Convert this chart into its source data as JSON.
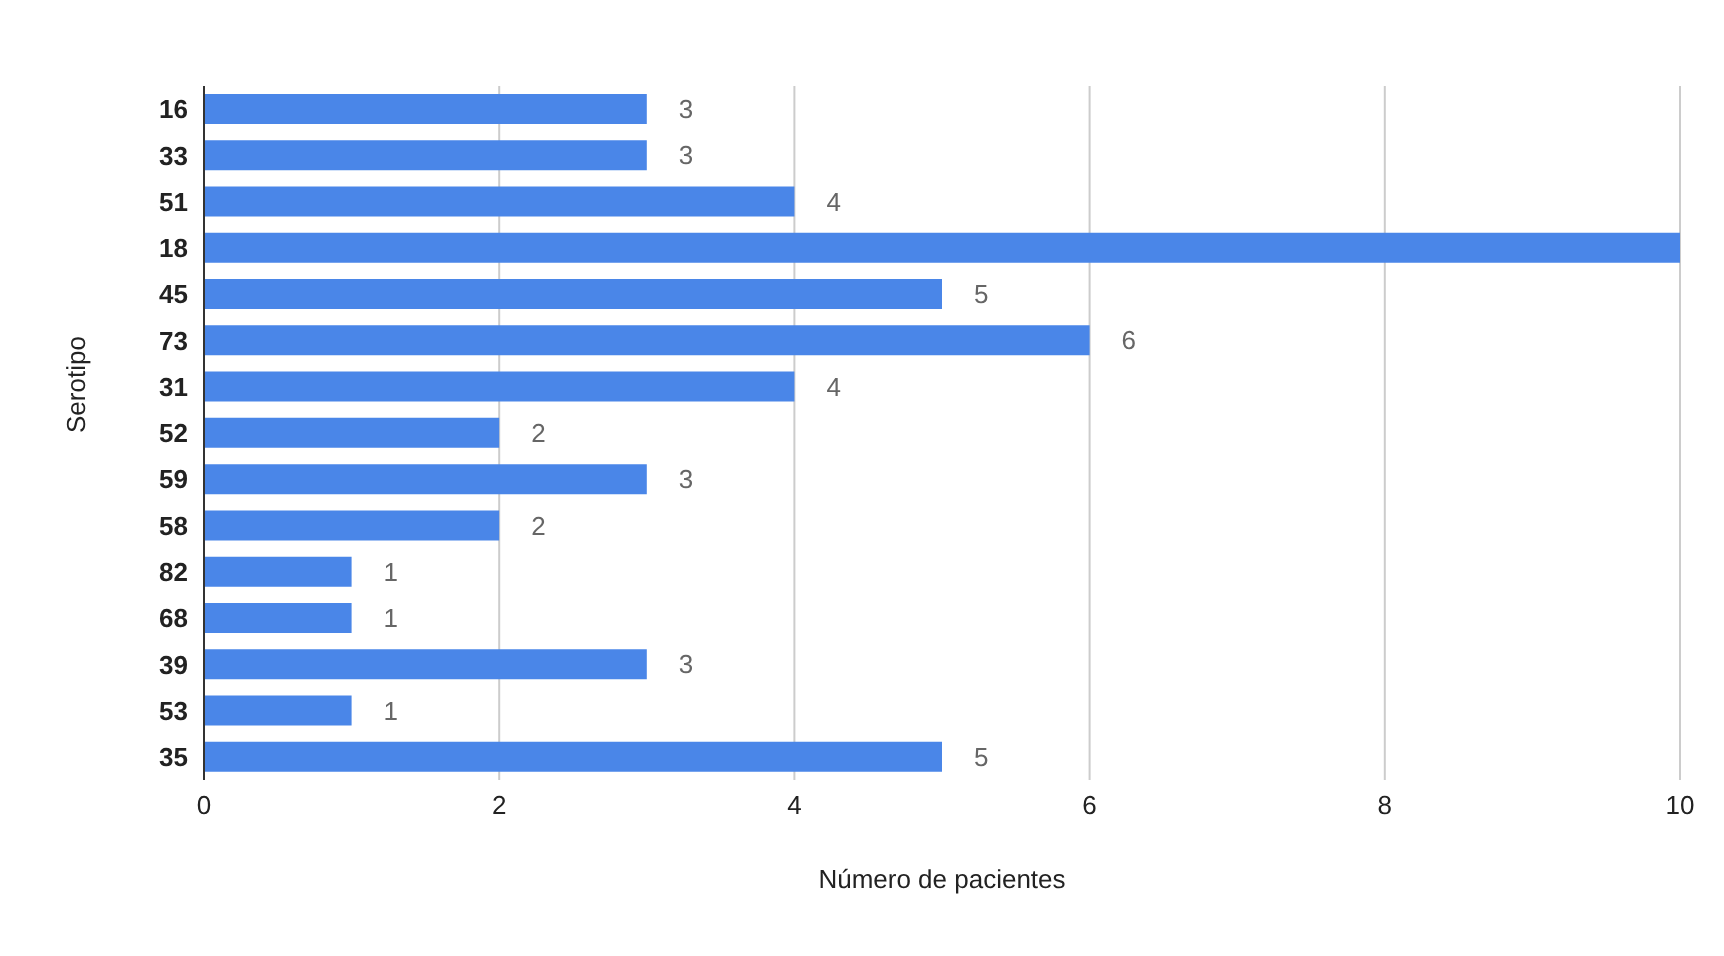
{
  "chart_data": {
    "type": "bar",
    "orientation": "horizontal",
    "ylabel": "Serotipo",
    "xlabel": "Número de pacientes",
    "categories": [
      "16",
      "33",
      "51",
      "18",
      "45",
      "73",
      "31",
      "52",
      "59",
      "58",
      "82",
      "68",
      "39",
      "53",
      "35"
    ],
    "values": [
      3,
      3,
      4,
      10,
      5,
      6,
      4,
      2,
      3,
      2,
      1,
      1,
      3,
      1,
      5
    ],
    "value_labels": [
      "3",
      "3",
      "4",
      null,
      "5",
      "6",
      "4",
      "2",
      "3",
      "2",
      "1",
      "1",
      "3",
      "1",
      "5"
    ],
    "color": "#4a86e8",
    "xlim": [
      0,
      10
    ],
    "xticks": [
      0,
      2,
      4,
      6,
      8,
      10
    ],
    "grid": "x",
    "legend": false
  }
}
